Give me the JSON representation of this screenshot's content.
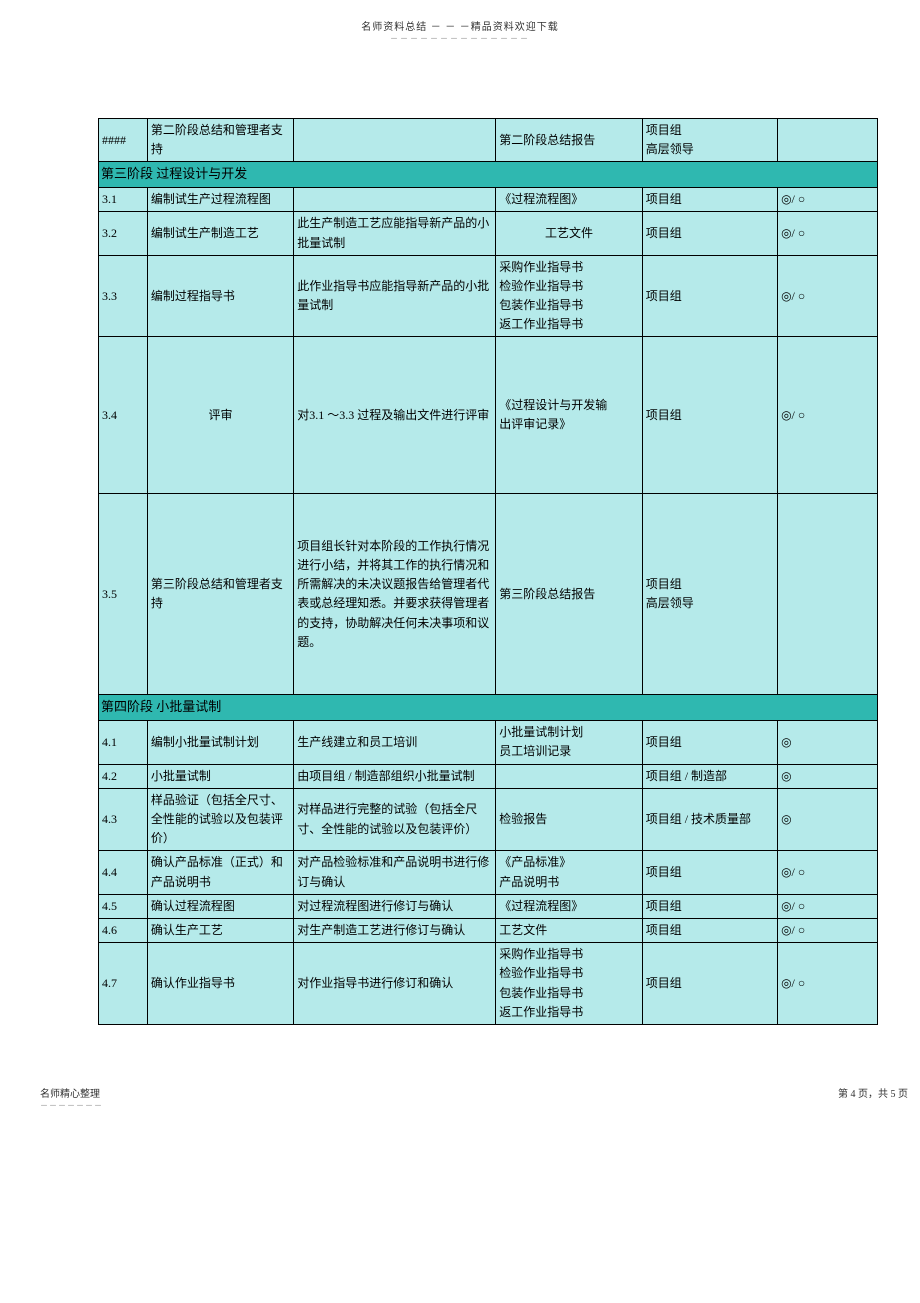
{
  "header": {
    "line1": "名师资料总结 － － －精品资料欢迎下载",
    "line2": "－－－－－－－－－－－－－－"
  },
  "colors": {
    "cell_bg": "#b5eaea",
    "section_bg": "#2fb8b0",
    "border": "#000000",
    "page_bg": "#ffffff"
  },
  "rows": [
    {
      "type": "data",
      "cells": [
        "####",
        "第二阶段总结和管理者支持",
        "",
        "第二阶段总结报告",
        "项目组\n高层领导",
        ""
      ]
    },
    {
      "type": "section",
      "label": "第三阶段   过程设计与开发"
    },
    {
      "type": "data",
      "cells": [
        "3.1",
        "编制试生产过程流程图",
        "",
        "《过程流程图》",
        "项目组",
        "◎/ ○"
      ]
    },
    {
      "type": "data",
      "cells": [
        "3.2",
        "编制试生产制造工艺",
        "此生产制造工艺应能指导新产品的小批量试制",
        "工艺文件",
        "项目组",
        "◎/ ○"
      ]
    },
    {
      "type": "data",
      "cells": [
        "3.3",
        "编制过程指导书",
        "此作业指导书应能指导新产品的小批量试制",
        "采购作业指导书\n检验作业指导书\n包装作业指导书\n返工作业指导书",
        "项目组",
        "◎/ ○"
      ]
    },
    {
      "type": "data",
      "class": "phase3-4",
      "cells": [
        "3.4",
        "评审",
        "对3.1 ～3.3 过程及输出文件进行评审",
        "《过程设计与开发输\n出评审记录》",
        "项目组",
        "◎/ ○"
      ]
    },
    {
      "type": "data",
      "class": "phase3-5",
      "cells": [
        "3.5",
        "第三阶段总结和管理者支持",
        "项目组长针对本阶段的工作执行情况进行小结，并将其工作的执行情况和所需解决的未决议题报告给管理者代表或总经理知悉。并要求获得管理者的支持，协助解决任何未决事项和议题。",
        "第三阶段总结报告",
        "项目组\n高层领导",
        ""
      ]
    },
    {
      "type": "section",
      "label": "第四阶段   小批量试制"
    },
    {
      "type": "data",
      "cells": [
        "4.1",
        "编制小批量试制计划",
        "生产线建立和员工培训",
        "小批量试制计划\n员工培训记录",
        "项目组",
        "◎"
      ]
    },
    {
      "type": "data",
      "cells": [
        "4.2",
        "小批量试制",
        "由项目组 / 制造部组织小批量试制",
        "",
        "项目组 / 制造部",
        "◎"
      ]
    },
    {
      "type": "data",
      "cells": [
        "4.3",
        "样品验证（包括全尺寸、全性能的试验以及包装评价）",
        "对样品进行完整的试验（包括全尺寸、全性能的试验以及包装评价）",
        "检验报告",
        "项目组 / 技术质量部",
        "◎"
      ]
    },
    {
      "type": "data",
      "cells": [
        "4.4",
        "确认产品标准（正式）和产品说明书",
        "对产品检验标准和产品说明书进行修订与确认",
        "《产品标准》\n产品说明书",
        "项目组",
        "◎/ ○"
      ]
    },
    {
      "type": "data",
      "cells": [
        "4.5",
        "确认过程流程图",
        "对过程流程图进行修订与确认",
        "《过程流程图》",
        "项目组",
        "◎/ ○"
      ]
    },
    {
      "type": "data",
      "cells": [
        "4.6",
        "确认生产工艺",
        "对生产制造工艺进行修订与确认",
        "工艺文件",
        "项目组",
        "◎/ ○"
      ]
    },
    {
      "type": "data",
      "cells": [
        "4.7",
        "确认作业指导书",
        "对作业指导书进行修订和确认",
        "采购作业指导书\n检验作业指导书\n包装作业指导书\n返工作业指导书",
        "项目组",
        "◎/ ○"
      ]
    }
  ],
  "footer": {
    "left_line1": "名师精心整理",
    "left_line2": "－－－－－－－",
    "right": "第 4 页，共 5 页"
  }
}
